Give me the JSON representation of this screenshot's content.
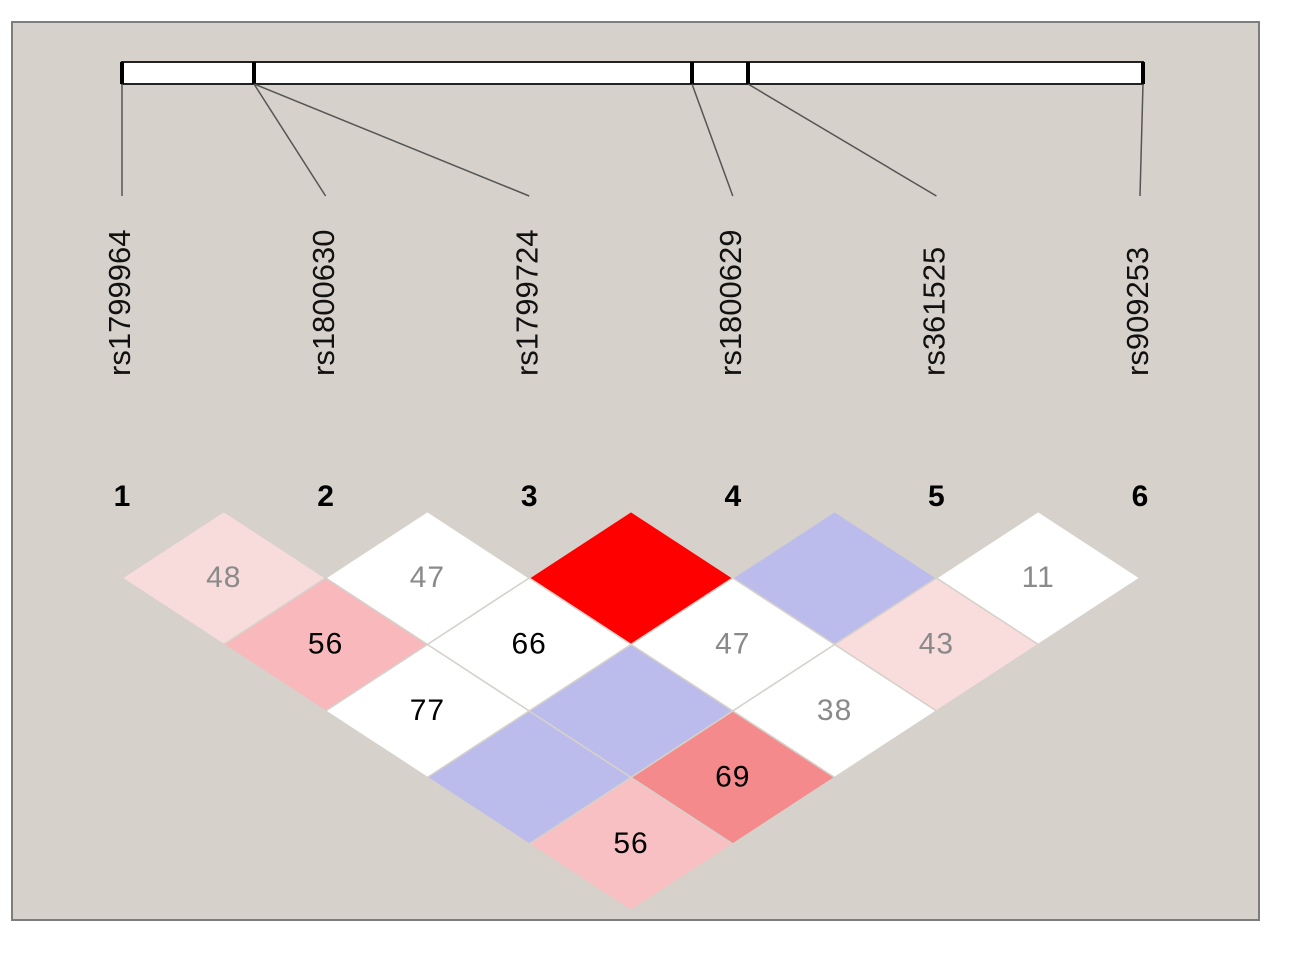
{
  "snps": [
    {
      "name": "rs1799964",
      "number": 1
    },
    {
      "name": "rs1800630",
      "number": 2
    },
    {
      "name": "rs1799724",
      "number": 3
    },
    {
      "name": "rs1800629",
      "number": 4
    },
    {
      "name": "rs361525",
      "number": 5
    },
    {
      "name": "rs909253",
      "number": 6
    }
  ],
  "rows": [
    [
      {
        "value": 48,
        "color": "#f8dcdc",
        "label_color": "#8a8a8a"
      },
      {
        "value": 47,
        "color": "#ffffff",
        "label_color": "#8a8a8a"
      },
      {
        "value": null,
        "color": "#ff0000"
      },
      {
        "value": null,
        "color": "#bcbcec"
      },
      {
        "value": 11,
        "color": "#ffffff",
        "label_color": "#8a8a8a"
      }
    ],
    [
      {
        "value": 56,
        "color": "#f8b8bc",
        "label_color": "#000000"
      },
      {
        "value": 66,
        "color": "#ffffff",
        "label_color": "#000000"
      },
      {
        "value": 47,
        "color": "#ffffff",
        "label_color": "#8a8a8a"
      },
      {
        "value": 43,
        "color": "#f9dcdc",
        "label_color": "#8a8a8a"
      }
    ],
    [
      {
        "value": 77,
        "color": "#ffffff",
        "label_color": "#000000"
      },
      {
        "value": null,
        "color": "#bcbcec"
      },
      {
        "value": 38,
        "color": "#ffffff",
        "label_color": "#8a8a8a"
      }
    ],
    [
      {
        "value": null,
        "color": "#bcbcec"
      },
      {
        "value": 69,
        "color": "#f58a8c",
        "label_color": "#000000"
      }
    ],
    [
      {
        "value": 56,
        "color": "#f9c0c4",
        "label_color": "#000000"
      }
    ]
  ]
}
